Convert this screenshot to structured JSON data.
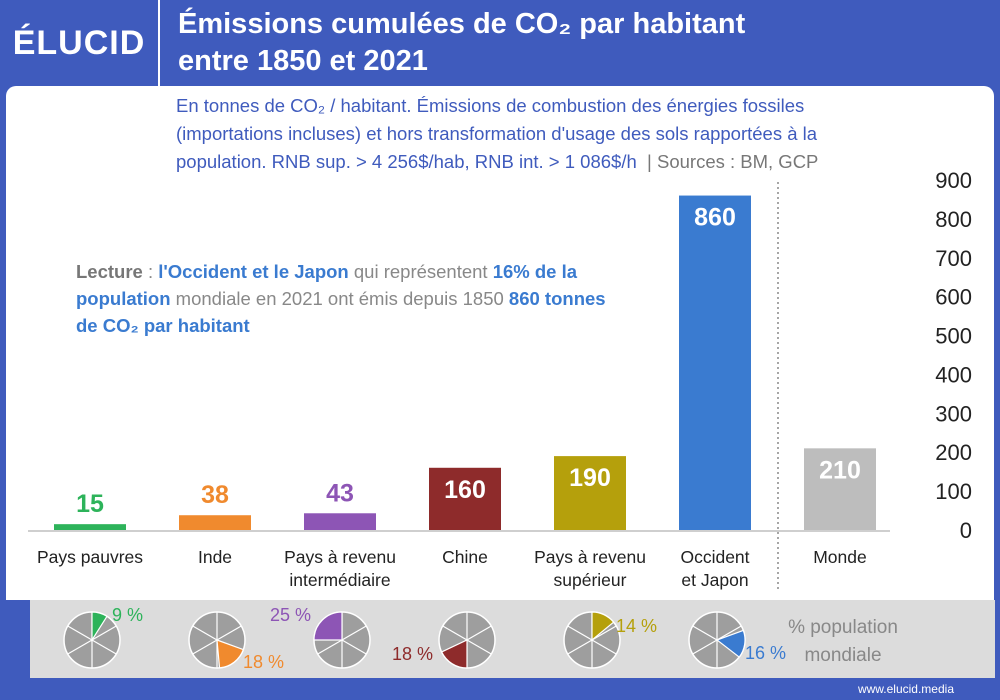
{
  "brand": "ÉLUCID",
  "title_line1": "Émissions cumulées de CO₂ par habitant",
  "title_line2": "entre 1850 et 2021",
  "subtitle_line1": "En tonnes de CO₂ / habitant. Émissions de combustion des énergies fossiles",
  "subtitle_line2": "(importations incluses) et hors transformation d'usage des sols rapportées à la",
  "subtitle_line3": "population. RNB sup. > 4 256$/hab, RNB int. > 1 086$/h",
  "sources": "|  Sources : BM, GCP",
  "reading": {
    "p1": "Lecture",
    "p2": " : ",
    "p3": "l'Occident et le Japon",
    "p4": " qui représentent ",
    "p5": "16% de la population",
    "p6": " mondiale en 2021 ont émis depuis 1850 ",
    "p7": "860 tonnes de CO₂ par habitant"
  },
  "population_label_line1": "% population",
  "population_label_line2": "mondiale",
  "footer_url": "www.elucid.media",
  "chart_data": {
    "type": "bar",
    "categories": [
      [
        "Pays pauvres"
      ],
      [
        "Inde"
      ],
      [
        "Pays à revenu",
        "intermédiaire"
      ],
      [
        "Chine"
      ],
      [
        "Pays à revenu",
        "supérieur"
      ],
      [
        "Occident",
        "et Japon"
      ],
      [
        "Monde"
      ]
    ],
    "values": [
      15,
      38,
      43,
      160,
      190,
      860,
      210
    ],
    "colors": [
      "#2db35a",
      "#f08a2e",
      "#8d55b5",
      "#8e2b2b",
      "#b5a00c",
      "#3a7bd0",
      "#bdbdbd"
    ],
    "ylim": [
      0,
      900
    ],
    "yticks": [
      0,
      100,
      200,
      300,
      400,
      500,
      600,
      700,
      800,
      900
    ],
    "grid": false,
    "population_share_percent": [
      9,
      18,
      25,
      18,
      14,
      16
    ],
    "population_share_labels": [
      "9 %",
      "18 %",
      "25 %",
      "18 %",
      "14 %",
      "16 %"
    ]
  }
}
